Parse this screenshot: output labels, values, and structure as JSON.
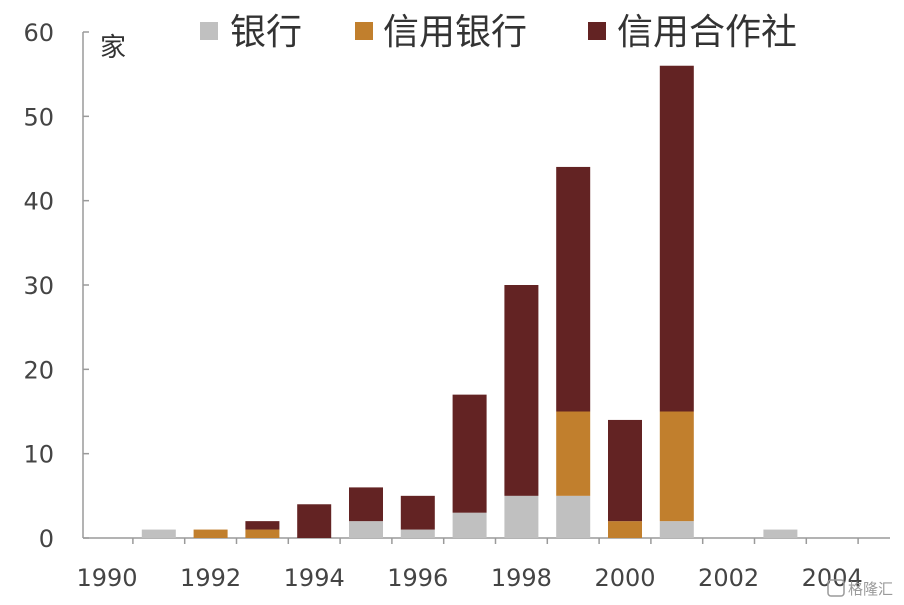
{
  "chart_data": {
    "type": "bar",
    "stacked": true,
    "x": [
      1990,
      1991,
      1992,
      1993,
      1994,
      1995,
      1996,
      1997,
      1998,
      1999,
      2000,
      2001,
      2002,
      2003,
      2004
    ],
    "x_tick_labels": [
      "1990",
      "1992",
      "1994",
      "1996",
      "1998",
      "2000",
      "2002",
      "2004"
    ],
    "y_tick_labels": [
      "0",
      "10",
      "20",
      "30",
      "40",
      "50",
      "60"
    ],
    "ylim": [
      0,
      60
    ],
    "ylabel": "家",
    "legend_position": "top",
    "series": [
      {
        "name": "银行",
        "color": "#c0c0c0",
        "values": [
          0,
          1,
          0,
          0,
          0,
          2,
          1,
          3,
          5,
          5,
          0,
          2,
          0,
          1,
          0
        ]
      },
      {
        "name": "信用银行",
        "color": "#c17f2d",
        "values": [
          0,
          0,
          1,
          1,
          0,
          0,
          0,
          0,
          0,
          10,
          2,
          13,
          0,
          0,
          0
        ]
      },
      {
        "name": "信用合作社",
        "color": "#632323",
        "values": [
          0,
          0,
          0,
          1,
          4,
          4,
          4,
          14,
          25,
          29,
          12,
          41,
          0,
          0,
          0
        ]
      }
    ],
    "grid": false
  },
  "watermark": "格隆汇"
}
